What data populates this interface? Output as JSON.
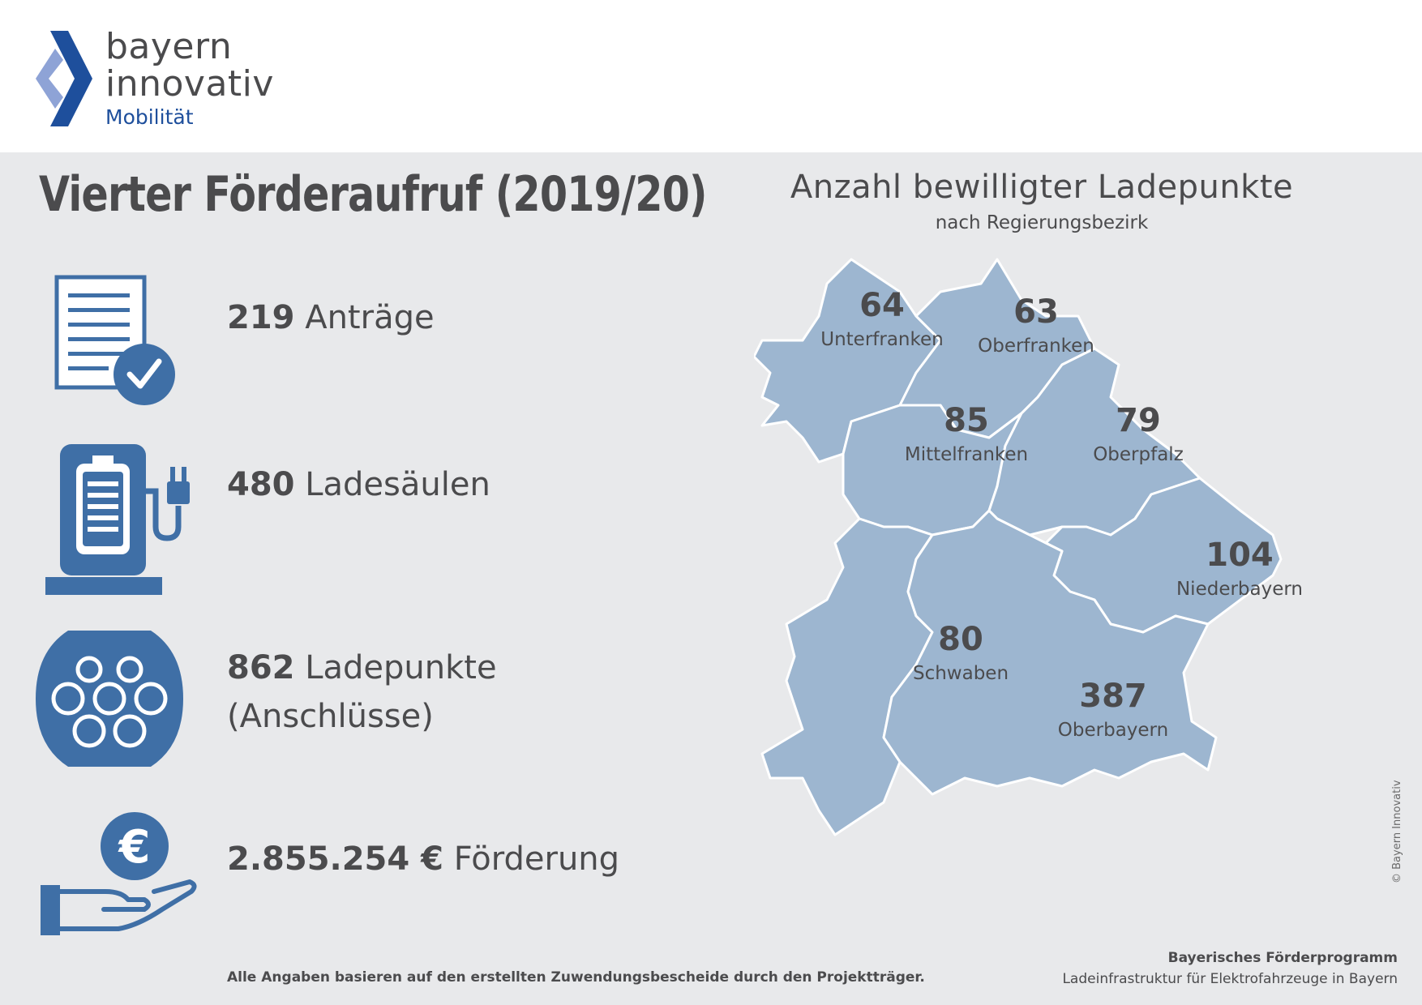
{
  "logo": {
    "line1": "bayern",
    "line2": "innovativ",
    "line3": "Mobilität"
  },
  "title": "Vierter Förderaufruf (2019/20)",
  "stats": [
    {
      "number": "219",
      "label": "Anträge",
      "icon": "document-check-icon"
    },
    {
      "number": "480",
      "label": "Ladesäulen",
      "icon": "charging-station-icon"
    },
    {
      "number": "862",
      "label": "Ladepunkte",
      "label2": "(Anschlüsse)",
      "icon": "charging-plug-icon"
    },
    {
      "number": "2.855.254 €",
      "label": "Förderung",
      "icon": "euro-hand-icon"
    }
  ],
  "map": {
    "title": "Anzahl bewilligter Ladepunkte",
    "subtitle": "nach Regierungsbezirk",
    "regions": [
      {
        "name": "Unterfranken",
        "value": "64"
      },
      {
        "name": "Oberfranken",
        "value": "63"
      },
      {
        "name": "Mittelfranken",
        "value": "85"
      },
      {
        "name": "Oberpfalz",
        "value": "79"
      },
      {
        "name": "Niederbayern",
        "value": "104"
      },
      {
        "name": "Schwaben",
        "value": "80"
      },
      {
        "name": "Oberbayern",
        "value": "387"
      }
    ]
  },
  "footnote": "Alle Angaben basieren auf den erstellten Zuwendungsbescheide durch den Projektträger.",
  "program": {
    "line1": "Bayerisches Förderprogramm",
    "line2": "Ladeinfrastruktur für Elektrofahrzeuge in Bayern"
  },
  "copyright": "© Bayern Innovativ",
  "colors": {
    "accent": "#3f6fa6",
    "map_fill": "#9db6d0",
    "logo_blue": "#1e4f9c",
    "logo_light": "#8ea3d6"
  }
}
